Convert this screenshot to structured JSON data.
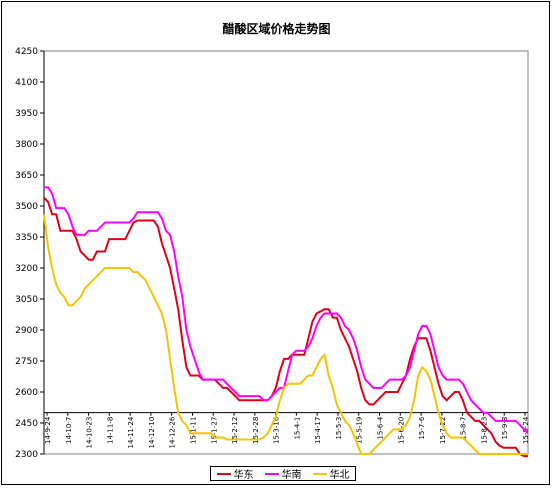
{
  "chart_data": {
    "type": "line",
    "title": "醋酸区域价格走势图",
    "xlabel": "",
    "ylabel": "",
    "ylim": [
      2300,
      4250
    ],
    "yticks": [
      2300,
      2450,
      2600,
      2750,
      2900,
      3050,
      3200,
      3350,
      3500,
      3650,
      3800,
      3950,
      4100,
      4250
    ],
    "grid": false,
    "legend_position": "bottom",
    "x_labels": [
      "14-9-24",
      "14-10-7",
      "14-10-23",
      "14-11-8",
      "14-11-24",
      "14-12-10",
      "14-12-26",
      "15-1-11",
      "15-1-27",
      "15-2-12",
      "15-2-28",
      "15-3-16",
      "15-4-1",
      "15-4-17",
      "15-5-3",
      "15-5-19",
      "15-6-4",
      "15-6-20",
      "15-7-6",
      "15-7-22",
      "15-8-7",
      "15-8-23",
      "15-9-8",
      "15-9-24"
    ],
    "series": [
      {
        "name": "华东",
        "color": "#e0001a",
        "values": [
          3540,
          3520,
          3460,
          3460,
          3380,
          3380,
          3380,
          3380,
          3340,
          3280,
          3260,
          3240,
          3240,
          3280,
          3280,
          3280,
          3340,
          3340,
          3340,
          3340,
          3340,
          3380,
          3420,
          3430,
          3430,
          3430,
          3430,
          3430,
          3400,
          3320,
          3260,
          3200,
          3100,
          3000,
          2850,
          2720,
          2680,
          2680,
          2680,
          2660,
          2660,
          2660,
          2660,
          2640,
          2620,
          2620,
          2600,
          2580,
          2560,
          2560,
          2560,
          2560,
          2560,
          2560,
          2560,
          2560,
          2580,
          2620,
          2700,
          2760,
          2760,
          2780,
          2780,
          2780,
          2780,
          2860,
          2940,
          2980,
          2990,
          3000,
          3000,
          2960,
          2960,
          2900,
          2860,
          2820,
          2760,
          2700,
          2620,
          2560,
          2540,
          2540,
          2560,
          2580,
          2600,
          2600,
          2600,
          2600,
          2640,
          2680,
          2760,
          2820,
          2860,
          2860,
          2860,
          2800,
          2720,
          2640,
          2580,
          2560,
          2580,
          2600,
          2600,
          2560,
          2500,
          2480,
          2460,
          2460,
          2440,
          2420,
          2400,
          2360,
          2340,
          2330,
          2330,
          2330,
          2330,
          2300,
          2290,
          2290
        ]
      },
      {
        "name": "华南",
        "color": "#ff00ff",
        "values": [
          3590,
          3590,
          3560,
          3490,
          3490,
          3490,
          3460,
          3400,
          3360,
          3360,
          3360,
          3380,
          3380,
          3380,
          3400,
          3420,
          3420,
          3420,
          3420,
          3420,
          3420,
          3420,
          3440,
          3470,
          3470,
          3470,
          3470,
          3470,
          3470,
          3440,
          3380,
          3360,
          3280,
          3160,
          3060,
          2900,
          2820,
          2760,
          2700,
          2660,
          2660,
          2660,
          2660,
          2660,
          2660,
          2640,
          2620,
          2600,
          2580,
          2580,
          2580,
          2580,
          2580,
          2580,
          2560,
          2560,
          2580,
          2600,
          2620,
          2620,
          2700,
          2780,
          2800,
          2800,
          2800,
          2820,
          2860,
          2920,
          2960,
          2980,
          2980,
          2980,
          2980,
          2960,
          2920,
          2900,
          2860,
          2800,
          2720,
          2660,
          2640,
          2620,
          2620,
          2620,
          2640,
          2660,
          2660,
          2660,
          2660,
          2680,
          2720,
          2800,
          2880,
          2920,
          2920,
          2880,
          2800,
          2720,
          2680,
          2660,
          2660,
          2660,
          2660,
          2640,
          2600,
          2560,
          2540,
          2520,
          2500,
          2500,
          2480,
          2460,
          2460,
          2460,
          2460,
          2460,
          2460,
          2440,
          2420,
          2400
        ]
      },
      {
        "name": "华北",
        "color": "#f5c400",
        "values": [
          3460,
          3300,
          3200,
          3120,
          3080,
          3060,
          3020,
          3020,
          3040,
          3060,
          3100,
          3120,
          3140,
          3160,
          3180,
          3200,
          3200,
          3200,
          3200,
          3200,
          3200,
          3200,
          3180,
          3180,
          3160,
          3140,
          3100,
          3060,
          3020,
          2980,
          2900,
          2760,
          2620,
          2500,
          2460,
          2440,
          2400,
          2400,
          2400,
          2400,
          2400,
          2400,
          2380,
          2380,
          2380,
          2370,
          2370,
          2370,
          2370,
          2370,
          2370,
          2370,
          2370,
          2370,
          2380,
          2400,
          2440,
          2480,
          2560,
          2620,
          2640,
          2640,
          2640,
          2640,
          2660,
          2680,
          2680,
          2720,
          2760,
          2780,
          2680,
          2620,
          2540,
          2500,
          2460,
          2440,
          2400,
          2350,
          2300,
          2300,
          2300,
          2320,
          2340,
          2360,
          2380,
          2400,
          2420,
          2420,
          2420,
          2440,
          2480,
          2560,
          2680,
          2720,
          2700,
          2660,
          2580,
          2500,
          2440,
          2400,
          2380,
          2380,
          2380,
          2380,
          2360,
          2340,
          2320,
          2300,
          2300,
          2300,
          2300,
          2300,
          2300,
          2300,
          2300,
          2300,
          2300,
          2300,
          2300,
          2300
        ]
      }
    ]
  }
}
